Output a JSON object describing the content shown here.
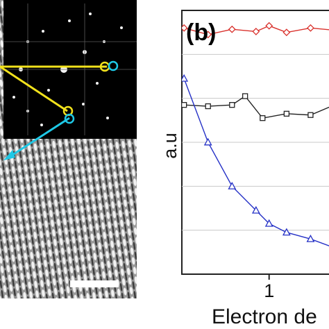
{
  "figure": {
    "panel_a_scale_bar": "scale-bar",
    "colors": {
      "yellow_overlay": "#f2e21c",
      "cyan_overlay": "#1ec8e6",
      "fft_background": "#000000"
    }
  },
  "chart_data": {
    "type": "line",
    "panel_label": "(b)",
    "title": "",
    "xlabel": "Electron de",
    "ylabel": "a.u",
    "x_ticks": [
      1
    ],
    "xlim": [
      0.2,
      1.6
    ],
    "ylim": [
      0,
      6
    ],
    "grid": true,
    "grid_axis": "y",
    "series": [
      {
        "color": "#d9302b",
        "marker": "diamond",
        "x": [
          0.22,
          0.44,
          0.66,
          0.88,
          1.0,
          1.16,
          1.38,
          1.6
        ],
        "y": [
          5.6,
          5.45,
          5.57,
          5.52,
          5.65,
          5.5,
          5.6,
          5.55
        ]
      },
      {
        "color": "#222222",
        "marker": "square",
        "x": [
          0.22,
          0.44,
          0.66,
          0.78,
          0.94,
          1.16,
          1.38,
          1.6
        ],
        "y": [
          3.85,
          3.82,
          3.85,
          4.05,
          3.55,
          3.65,
          3.62,
          3.85
        ]
      },
      {
        "color": "#2430c6",
        "marker": "triangle",
        "x": [
          0.22,
          0.44,
          0.66,
          0.88,
          1.0,
          1.16,
          1.38,
          1.6
        ],
        "y": [
          4.45,
          3.0,
          2.0,
          1.45,
          1.15,
          0.95,
          0.8,
          0.6
        ]
      }
    ]
  }
}
